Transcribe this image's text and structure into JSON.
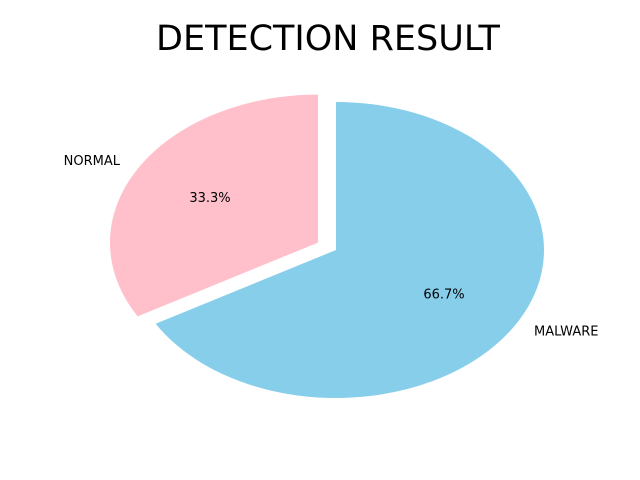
{
  "chart_data": {
    "type": "pie",
    "title": "DETECTION RESULT",
    "slices": [
      {
        "label": "NORMAL",
        "value": 33.3,
        "pct_label": "33.3%",
        "color": "#ffc0cb",
        "exploded": true
      },
      {
        "label": "MALWARE",
        "value": 66.7,
        "pct_label": "66.7%",
        "color": "#87ceeb",
        "exploded": false
      }
    ]
  }
}
